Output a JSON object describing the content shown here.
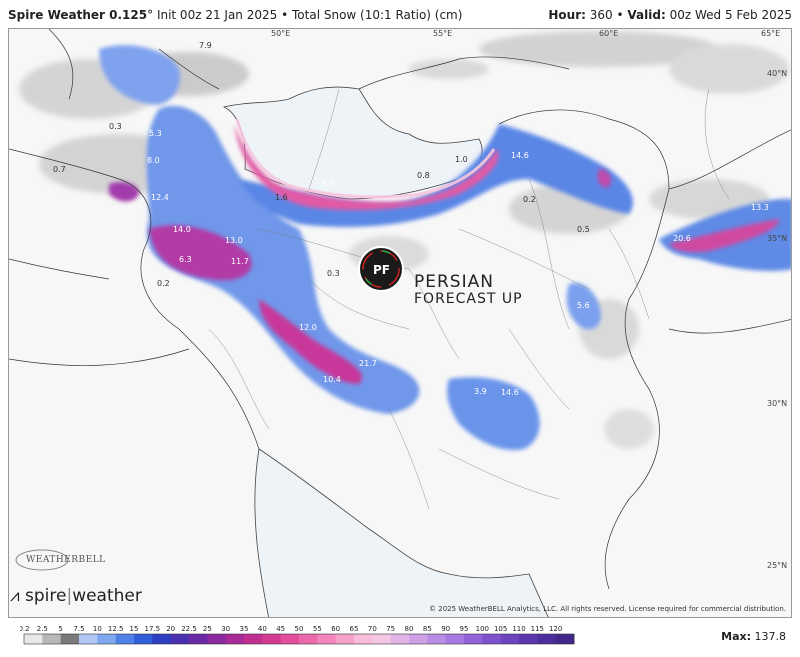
{
  "header": {
    "model": "Spire Weather 0.125",
    "degree": "°",
    "init": "Init 00z 21 Jan 2025",
    "separator": "•",
    "product": "Total Snow (10:1 Ratio) (cm)",
    "hour_label": "Hour:",
    "hour_value": "360",
    "valid_label": "Valid:",
    "valid_value": "00z Wed 5 Feb 2025"
  },
  "map": {
    "lon_labels": [
      "50°E",
      "55°E",
      "60°E",
      "65°E"
    ],
    "lat_labels": [
      "40°N",
      "35°N",
      "30°N",
      "25°N"
    ],
    "value_labels": [
      "7.9",
      "0.3",
      "5.3",
      "0.7",
      "8.0",
      "12.4",
      "14.0",
      "13.0",
      "11.7",
      "6.3",
      "0.2",
      "1.6",
      "5.5",
      "0.8",
      "1.0",
      "14.6",
      "2.7",
      "0.2",
      "0.5",
      "13.3",
      "20.6",
      "0.3",
      "5.6",
      "12.0",
      "21.7",
      "10.4",
      "3.9",
      "14.6"
    ],
    "watermark": {
      "logo_initials": "PF",
      "line1": "PERSIAN",
      "line2": "FORECAST UP"
    },
    "weatherbell": "WEATHERBELL",
    "brand_left": "spire",
    "brand_right": "weather",
    "copyright": "© 2025 WeatherBELL Analytics, LLC. All rights reserved. License required for commercial distribution."
  },
  "colorbar": {
    "ticks": [
      "0.2",
      "2.5",
      "5",
      "7.5",
      "10",
      "12.5",
      "15",
      "17.5",
      "20",
      "22.5",
      "25",
      "30",
      "35",
      "40",
      "45",
      "50",
      "55",
      "60",
      "65",
      "70",
      "75",
      "80",
      "85",
      "90",
      "95",
      "100",
      "105",
      "110",
      "115",
      "120"
    ],
    "colors": [
      "#e8e8e8",
      "#b8b8b8",
      "#7a7a7a",
      "#b0c8f5",
      "#7fa8f0",
      "#4f82e8",
      "#2f5fd8",
      "#2d3fc0",
      "#4a2fb0",
      "#6a2aa8",
      "#8a2aa0",
      "#a82c98",
      "#c03090",
      "#d43a90",
      "#e34f9c",
      "#ec6aab",
      "#f286ba",
      "#f6a2cb",
      "#f9bcd9",
      "#f4c6e4",
      "#e2b4e6",
      "#cea0e6",
      "#ba8ce4",
      "#a678e0",
      "#9264d8",
      "#7e52cc",
      "#6c44be",
      "#5c38ae",
      "#4e2e9c",
      "#42268a"
    ],
    "max_label": "Max:",
    "max_value": "137.8"
  }
}
